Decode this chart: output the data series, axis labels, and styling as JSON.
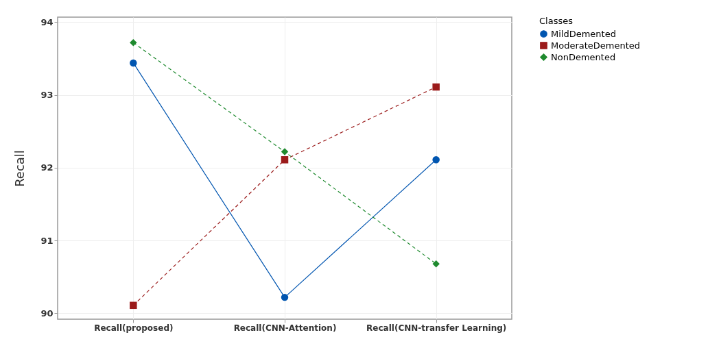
{
  "chart_data": {
    "type": "line",
    "ylabel": "Recall",
    "legend_title": "Classes",
    "categories": [
      "Recall(proposed)",
      "Recall(CNN-Attention)",
      "Recall(CNN-transfer Learning)"
    ],
    "series": [
      {
        "name": "MildDemented",
        "color": "#0055b0",
        "marker": "circle",
        "line_style": "solid",
        "values": [
          93.44,
          90.22,
          92.11
        ]
      },
      {
        "name": "ModerateDemented",
        "color": "#9b1b1b",
        "marker": "square",
        "line_style": "dashed",
        "values": [
          90.11,
          92.11,
          93.11
        ]
      },
      {
        "name": "NonDemented",
        "color": "#1e8a2e",
        "marker": "diamond",
        "line_style": "dashed",
        "values": [
          93.72,
          92.22,
          90.68
        ]
      }
    ],
    "ylim": [
      89.92,
      94.07
    ],
    "yticks": [
      90,
      91,
      92,
      93,
      94
    ],
    "grid": true,
    "legend": "top right"
  }
}
